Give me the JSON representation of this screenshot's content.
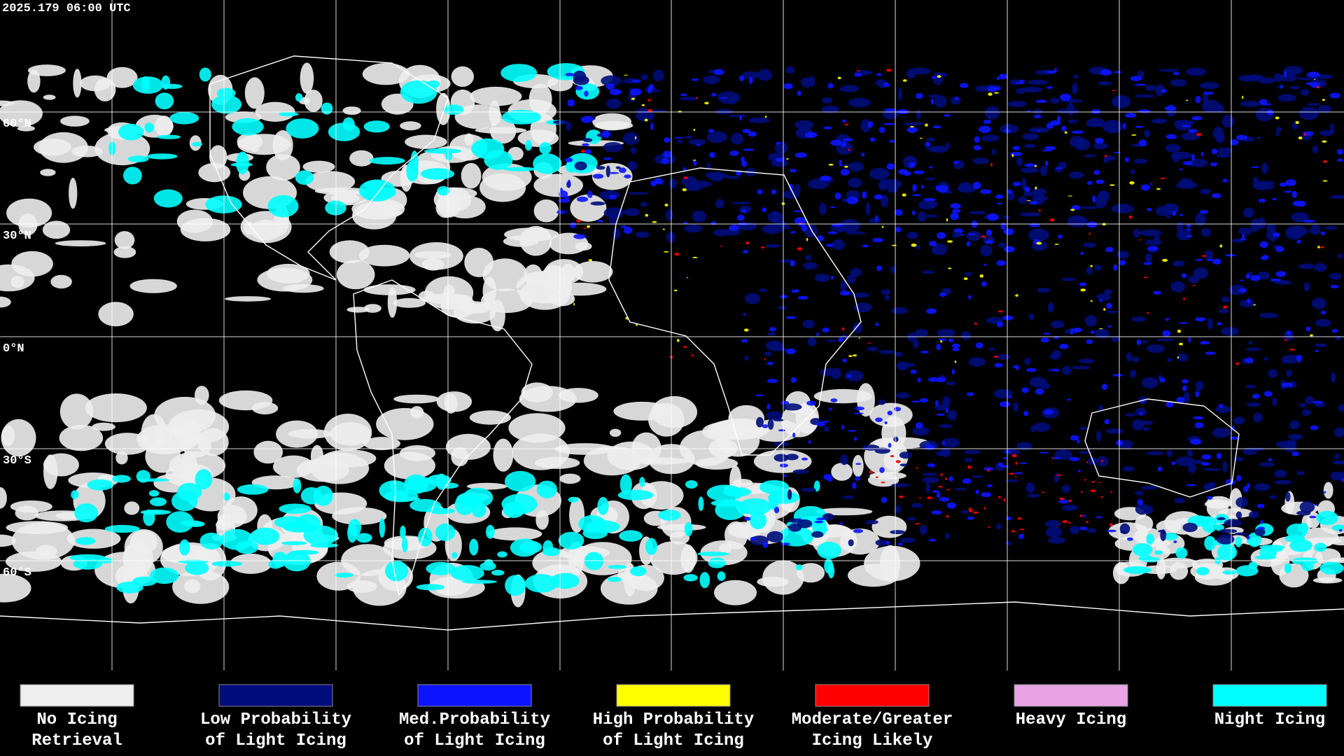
{
  "header": {
    "timestamp": "2025.179 06:00 UTC"
  },
  "map": {
    "latitude_labels": [
      "60°N",
      "30°N",
      "0°N",
      "30°S",
      "60°S"
    ]
  },
  "legend": {
    "items": [
      {
        "label_lines": [
          "No Icing",
          "Retrieval"
        ],
        "color": "#eeeeee"
      },
      {
        "label_lines": [
          "Low Probability",
          "of Light Icing"
        ],
        "color": "#000c7a"
      },
      {
        "label_lines": [
          "Med.Probability",
          "of Light Icing"
        ],
        "color": "#0c14ff"
      },
      {
        "label_lines": [
          "High Probability",
          "of Light Icing"
        ],
        "color": "#ffff00"
      },
      {
        "label_lines": [
          "Moderate/Greater",
          "Icing Likely"
        ],
        "color": "#ff0000"
      },
      {
        "label_lines": [
          "Heavy Icing"
        ],
        "color": "#e8a4e4"
      },
      {
        "label_lines": [
          "Night Icing"
        ],
        "color": "#00ffff"
      }
    ]
  }
}
